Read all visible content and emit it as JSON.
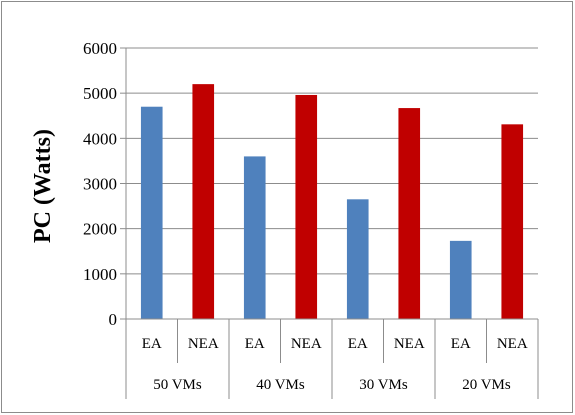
{
  "chart_data": {
    "type": "bar",
    "ylabel": "PC (Watts)",
    "xlabel": "",
    "ylim": [
      0,
      6000
    ],
    "yticks": [
      0,
      1000,
      2000,
      3000,
      4000,
      5000,
      6000
    ],
    "grid": true,
    "legend": "none",
    "groups": [
      "50 VMs",
      "40 VMs",
      "30 VMs",
      "20 VMs"
    ],
    "subcategories": [
      "EA",
      "NEA"
    ],
    "series": [
      {
        "name": "EA",
        "color": "#4f81bd",
        "values": [
          4700,
          3600,
          2650,
          1730
        ]
      },
      {
        "name": "NEA",
        "color": "#c00000",
        "values": [
          5200,
          4960,
          4670,
          4310
        ]
      }
    ]
  }
}
